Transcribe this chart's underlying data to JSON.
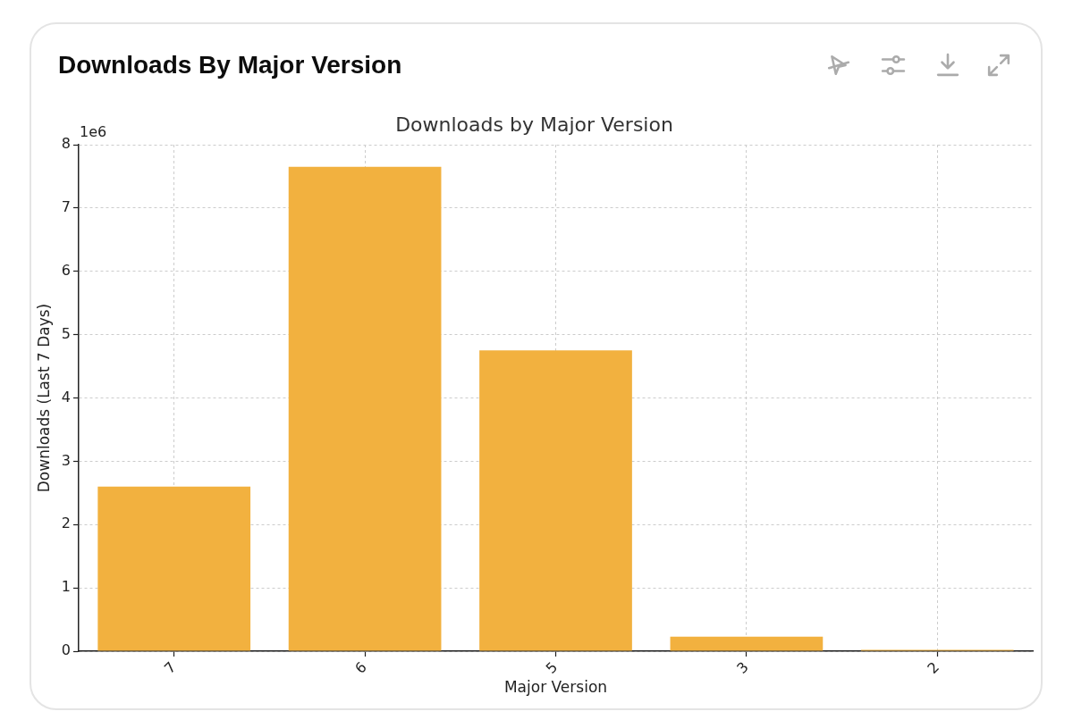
{
  "chart_data": {
    "type": "bar",
    "title": "Downloads By Major Version",
    "subtitle": "Downloads by Major Version",
    "xlabel": "Major Version",
    "ylabel": "Downloads (Last 7 Days)",
    "annotations": [
      "1e6"
    ],
    "categories": [
      "7",
      "6",
      "5",
      "3",
      "2"
    ],
    "values": [
      2.6,
      7.65,
      4.75,
      0.23,
      0.02
    ],
    "color": "#f2b13f",
    "ylim": [
      0,
      8
    ],
    "yticks": [
      0,
      1,
      2,
      3,
      4,
      5,
      6,
      7,
      8
    ],
    "grid": true
  }
}
